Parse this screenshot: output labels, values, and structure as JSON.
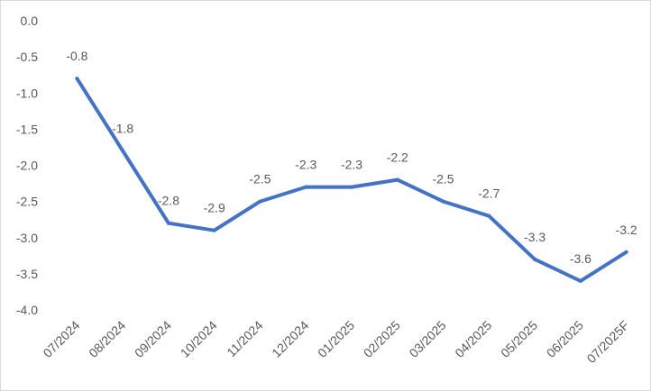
{
  "chart_data": {
    "type": "line",
    "title": "",
    "xlabel": "",
    "ylabel": "",
    "categories": [
      "07/2024",
      "08/2024",
      "09/2024",
      "10/2024",
      "11/2024",
      "12/2024",
      "01/2025",
      "02/2025",
      "03/2025",
      "04/2025",
      "05/2025",
      "06/2025",
      "07/2025F"
    ],
    "series": [
      {
        "values": [
          -0.8,
          -1.8,
          -2.8,
          -2.9,
          -2.5,
          -2.3,
          -2.3,
          -2.2,
          -2.5,
          -2.7,
          -3.3,
          -3.6,
          -3.2
        ]
      }
    ],
    "data_labels": [
      "-0.8",
      "-1.8",
      "-2.8",
      "-2.9",
      "-2.5",
      "-2.3",
      "-2.3",
      "-2.2",
      "-2.5",
      "-2.7",
      "-3.3",
      "-3.6",
      "-3.2"
    ],
    "ylim": [
      -4.0,
      0.0
    ],
    "yticks": [
      "0.0",
      "-0.5",
      "-1.0",
      "-1.5",
      "-2.0",
      "-2.5",
      "-3.0",
      "-3.5",
      "-4.0"
    ],
    "grid": false,
    "legend": "none",
    "line_color": "#4472C4",
    "text_color": "#595959"
  }
}
